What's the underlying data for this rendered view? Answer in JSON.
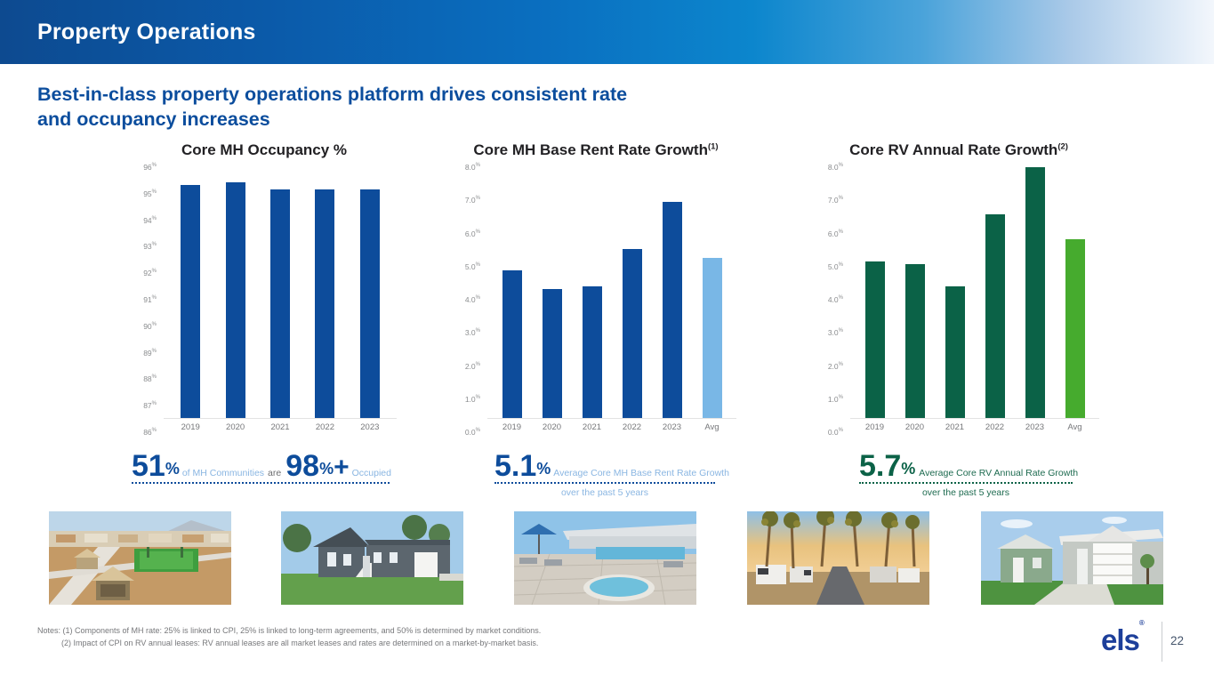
{
  "header": {
    "title": "Property Operations"
  },
  "subtitle": {
    "line1": "Best-in-class property operations platform drives consistent rate",
    "line2": "and occupancy increases"
  },
  "chart_data": [
    {
      "type": "bar",
      "title": "Core MH Occupancy %",
      "title_superscript": "",
      "categories": [
        "2019",
        "2020",
        "2021",
        "2022",
        "2023"
      ],
      "values": [
        95.3,
        95.4,
        95.1,
        95.1,
        95.1
      ],
      "ylim": [
        86,
        96
      ],
      "ytick_step": 1,
      "ytick_format": "int",
      "ytick_suffix": "%",
      "grid": false,
      "bar_color": "#0d4c9b"
    },
    {
      "type": "bar",
      "title": "Core MH Base Rent Rate Growth",
      "title_superscript": "(1)",
      "categories": [
        "2019",
        "2020",
        "2021",
        "2022",
        "2023",
        "Avg"
      ],
      "values": [
        4.7,
        4.1,
        4.2,
        5.4,
        6.9,
        5.1
      ],
      "ylim": [
        0,
        8
      ],
      "ytick_step": 1,
      "ytick_format": "one_decimal",
      "ytick_suffix": "%",
      "grid": false,
      "bar_color": "#0d4c9b",
      "avg_color": "#79b7e6"
    },
    {
      "type": "bar",
      "title": "Core RV Annual Rate Growth",
      "title_superscript": "(2)",
      "categories": [
        "2019",
        "2020",
        "2021",
        "2022",
        "2023",
        "Avg"
      ],
      "values": [
        5.0,
        4.9,
        4.2,
        6.5,
        8.0,
        5.7
      ],
      "ylim": [
        0,
        8
      ],
      "ytick_step": 1,
      "ytick_format": "one_decimal",
      "ytick_suffix": "%",
      "grid": false,
      "bar_color": "#0b6247",
      "avg_color": "#46ab2e"
    }
  ],
  "stats": {
    "mh_occupancy": {
      "value1": "51",
      "sup1": "%",
      "mid_light": "of MH Communities",
      "mid_dark": "are",
      "value2": "98",
      "sup2": "%",
      "plus": "+",
      "tail": "Occupied"
    },
    "mh_rent_growth": {
      "value": "5.1",
      "sup": "%",
      "label": "Average Core MH Base Rent Rate Growth",
      "label2": "over the past 5 years"
    },
    "rv_rate_growth": {
      "value": "5.7",
      "sup": "%",
      "label": "Average Core RV Annual Rate Growth",
      "label2": "over the past 5 years"
    }
  },
  "photos": [
    {
      "name": "aerial-community-photo",
      "description": "Aerial view of MH community with pavilions and sports court"
    },
    {
      "name": "gray-manufactured-home-photo",
      "description": "Gray manufactured home with lawn and white garage"
    },
    {
      "name": "pool-spa-photo",
      "description": "Community pool deck with spa and blue umbrella"
    },
    {
      "name": "rv-palm-street-photo",
      "description": "Palm-lined RV resort street with parked RVs"
    },
    {
      "name": "new-homes-photo",
      "description": "New green and gray manufactured homes with driveways"
    }
  ],
  "notes": {
    "line1": "Notes: (1) Components of MH rate: 25% is linked to CPI, 25% is linked to long-term agreements, and 50% is determined by market conditions.",
    "line2": "(2) Impact of CPI on RV annual leases: RV annual leases are all market leases and rates are determined on a market-by-market basis."
  },
  "footer": {
    "logo": "els",
    "logo_reg": "®",
    "page_number": "22"
  },
  "colors": {
    "accent_blue": "#0d4c9b",
    "light_blue": "#79b7e6",
    "dark_green": "#0b6247",
    "light_green": "#46ab2e",
    "subtitle_blue": "#0b4d9d",
    "gray_text": "#77787b"
  }
}
